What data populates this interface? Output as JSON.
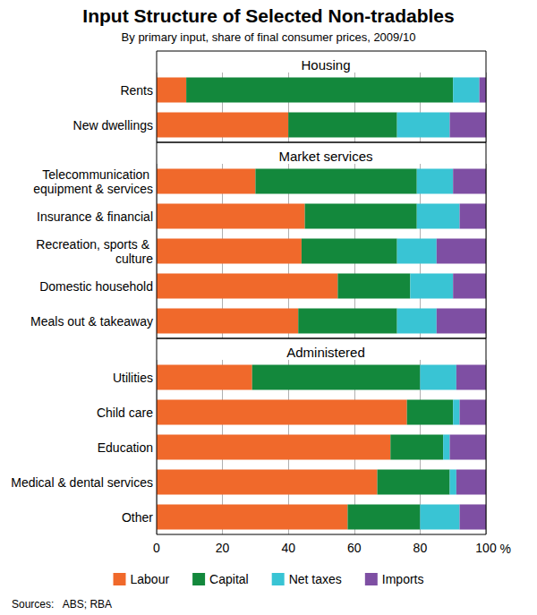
{
  "title": "Input Structure of Selected Non-tradables",
  "subtitle": "By primary input, share of final consumer prices, 2009/10",
  "source": "Sources:   ABS; RBA",
  "chart_data": [
    {
      "type": "bar",
      "orientation": "horizontal",
      "stacked": true,
      "grid": true,
      "title": "Housing",
      "tick_labels": "y",
      "categories": [
        "Rents",
        "New dwellings"
      ],
      "series": [
        {
          "name": "Labour",
          "color": "#f0692b",
          "values": [
            9,
            40
          ]
        },
        {
          "name": "Capital",
          "color": "#13883c",
          "values": [
            81,
            33
          ]
        },
        {
          "name": "Net taxes",
          "color": "#39c4d4",
          "values": [
            8,
            16
          ]
        },
        {
          "name": "Imports",
          "color": "#7e4fa3",
          "values": [
            2,
            11
          ]
        }
      ],
      "xlim": [
        0,
        100
      ],
      "xticks": [
        0,
        20,
        40,
        60,
        80,
        100
      ]
    },
    {
      "type": "bar",
      "orientation": "horizontal",
      "stacked": true,
      "grid": true,
      "title": "Market services",
      "tick_labels": "y",
      "categories": [
        "Telecommunication equipment & services",
        "Insurance & financial",
        "Recreation, sports & culture",
        "Domestic household",
        "Meals out & takeaway"
      ],
      "series": [
        {
          "name": "Labour",
          "color": "#f0692b",
          "values": [
            30,
            45,
            44,
            55,
            43
          ]
        },
        {
          "name": "Capital",
          "color": "#13883c",
          "values": [
            49,
            34,
            29,
            22,
            30
          ]
        },
        {
          "name": "Net taxes",
          "color": "#39c4d4",
          "values": [
            11,
            13,
            12,
            13,
            12
          ]
        },
        {
          "name": "Imports",
          "color": "#7e4fa3",
          "values": [
            10,
            8,
            15,
            10,
            15
          ]
        }
      ],
      "xlim": [
        0,
        100
      ],
      "xticks": [
        0,
        20,
        40,
        60,
        80,
        100
      ]
    },
    {
      "type": "bar",
      "orientation": "horizontal",
      "stacked": true,
      "grid": true,
      "title": "Administered",
      "legend": "bottom",
      "xlabel": "%",
      "categories": [
        "Utilities",
        "Child care",
        "Education",
        "Medical & dental services",
        "Other"
      ],
      "series": [
        {
          "name": "Labour",
          "color": "#f0692b",
          "values": [
            29,
            76,
            71,
            67,
            58
          ]
        },
        {
          "name": "Capital",
          "color": "#13883c",
          "values": [
            51,
            14,
            16,
            22,
            22
          ]
        },
        {
          "name": "Net taxes",
          "color": "#39c4d4",
          "values": [
            11,
            2,
            2,
            2,
            12
          ]
        },
        {
          "name": "Imports",
          "color": "#7e4fa3",
          "values": [
            9,
            8,
            11,
            9,
            8
          ]
        }
      ],
      "xlim": [
        0,
        100
      ],
      "xticks": [
        0,
        20,
        40,
        60,
        80,
        100
      ]
    }
  ]
}
